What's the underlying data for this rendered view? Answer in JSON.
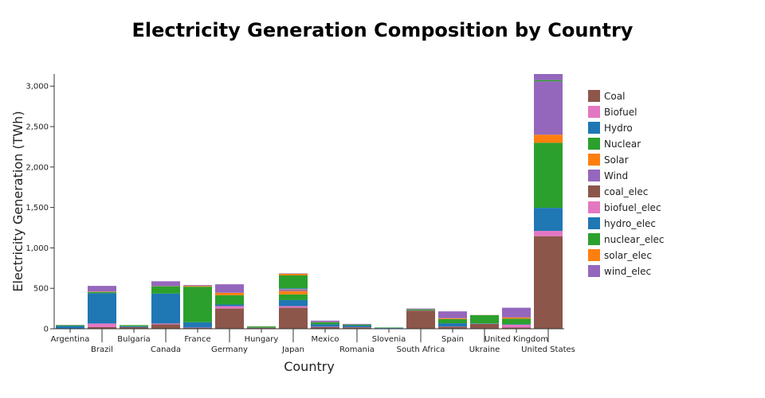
{
  "chart_data": {
    "type": "bar",
    "stacked": true,
    "title": "Electricity Generation Composition by Country",
    "xlabel": "Country",
    "ylabel": "Electricity Generation (TWh)",
    "ylim": [
      0,
      3150
    ],
    "yticks": [
      0,
      500,
      1000,
      1500,
      2000,
      2500,
      3000
    ],
    "ytick_labels": [
      "0",
      "500",
      "1,000",
      "1,500",
      "2,000",
      "2,500",
      "3,000"
    ],
    "legend_position": "right",
    "categories": [
      "Argentina",
      "Brazil",
      "Bulgaria",
      "Canada",
      "France",
      "Germany",
      "Hungary",
      "Japan",
      "Mexico",
      "Romania",
      "Slovenia",
      "South Africa",
      "Spain",
      "Ukraine",
      "United Kingdom",
      "United States"
    ],
    "series": [
      {
        "name": "Coal",
        "color": "#8c564b",
        "values": [
          2,
          20,
          20,
          55,
          10,
          250,
          10,
          260,
          20,
          18,
          5,
          225,
          25,
          60,
          15,
          1145
        ]
      },
      {
        "name": "Biofuel",
        "color": "#e377c2",
        "values": [
          2,
          45,
          1,
          10,
          5,
          30,
          3,
          20,
          5,
          2,
          1,
          1,
          3,
          1,
          35,
          65
        ]
      },
      {
        "name": "Hydro",
        "color": "#1f77b4",
        "values": [
          30,
          375,
          10,
          370,
          65,
          20,
          1,
          75,
          30,
          20,
          5,
          2,
          40,
          5,
          5,
          285
        ]
      },
      {
        "name": "Nuclear",
        "color": "#2ca02c",
        "values": [
          10,
          15,
          14,
          90,
          440,
          115,
          15,
          70,
          25,
          12,
          5,
          12,
          52,
          102,
          70,
          805
        ]
      },
      {
        "name": "Solar",
        "color": "#ff7f0e",
        "values": [
          1,
          5,
          0,
          2,
          10,
          30,
          1,
          40,
          2,
          0,
          0,
          1,
          10,
          1,
          15,
          100
        ]
      },
      {
        "name": "Wind",
        "color": "#9467bd",
        "values": [
          2,
          70,
          0,
          60,
          10,
          105,
          0,
          10,
          18,
          8,
          0,
          9,
          85,
          1,
          120,
          660
        ]
      },
      {
        "name": "coal_elec",
        "color": "#8c564b",
        "values": [
          0,
          0,
          0,
          0,
          0,
          0,
          0,
          10,
          0,
          0,
          0,
          0,
          0,
          0,
          0,
          0
        ]
      },
      {
        "name": "biofuel_elec",
        "color": "#e377c2",
        "values": [
          0,
          0,
          0,
          0,
          0,
          0,
          0,
          5,
          0,
          0,
          0,
          0,
          0,
          0,
          0,
          0
        ]
      },
      {
        "name": "hydro_elec",
        "color": "#1f77b4",
        "values": [
          0,
          0,
          0,
          0,
          0,
          0,
          0,
          10,
          0,
          0,
          0,
          0,
          0,
          0,
          0,
          0
        ]
      },
      {
        "name": "nuclear_elec",
        "color": "#2ca02c",
        "values": [
          0,
          0,
          0,
          0,
          0,
          0,
          0,
          160,
          0,
          0,
          0,
          0,
          0,
          0,
          0,
          15
        ]
      },
      {
        "name": "solar_elec",
        "color": "#ff7f0e",
        "values": [
          0,
          0,
          0,
          0,
          0,
          0,
          0,
          20,
          0,
          0,
          0,
          0,
          0,
          0,
          0,
          0
        ]
      },
      {
        "name": "wind_elec",
        "color": "#9467bd",
        "values": [
          0,
          0,
          0,
          0,
          0,
          0,
          0,
          5,
          0,
          0,
          0,
          0,
          0,
          0,
          0,
          75
        ]
      }
    ]
  }
}
